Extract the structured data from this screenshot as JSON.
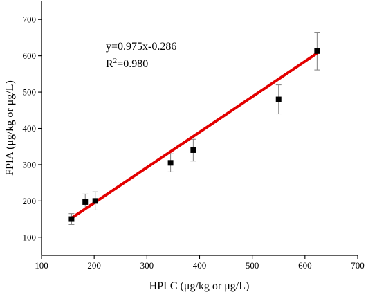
{
  "chart_data": {
    "type": "scatter",
    "xlabel": "HPLC (μg/kg or μg/L)",
    "ylabel": "FPIA (μg/kg or μg/L)",
    "xlim": [
      100,
      700
    ],
    "ylim": [
      50,
      750
    ],
    "xticks": [
      100,
      200,
      300,
      400,
      500,
      600,
      700
    ],
    "yticks": [
      100,
      200,
      300,
      400,
      500,
      600,
      700
    ],
    "grid": false,
    "points": [
      {
        "x": 157,
        "y": 150,
        "err": 15
      },
      {
        "x": 183,
        "y": 197,
        "err": 22
      },
      {
        "x": 202,
        "y": 200,
        "err": 25
      },
      {
        "x": 345,
        "y": 305,
        "err": 25
      },
      {
        "x": 388,
        "y": 340,
        "err": 30
      },
      {
        "x": 550,
        "y": 480,
        "err": 40
      },
      {
        "x": 623,
        "y": 613,
        "err": 52
      }
    ],
    "fit": {
      "slope": 0.975,
      "intercept": -0.286,
      "x_range": [
        157,
        623
      ],
      "color": "#e30000"
    },
    "equation": "y=0.975x-0.286",
    "r2_label": "R",
    "r2_sup": "2",
    "r2_value": "=0.980",
    "marker_color": "#000000",
    "errorbar_color": "#808080"
  }
}
